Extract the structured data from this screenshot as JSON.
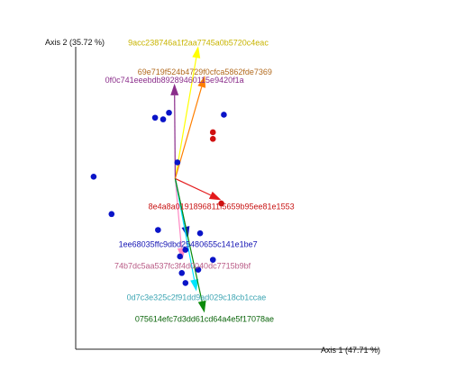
{
  "chart_data": {
    "type": "biplot",
    "xlabel": "Axis 1 (47.71 %)",
    "ylabel": "Axis 2 (35.72 %)",
    "xlim": [
      0,
      1
    ],
    "ylim": [
      0,
      1
    ],
    "grid": false,
    "points": [
      {
        "x": 0.049,
        "y": 0.521,
        "color": "#0a14c8"
      },
      {
        "x": 0.255,
        "y": 0.714,
        "color": "#0a14c8"
      },
      {
        "x": 0.239,
        "y": 0.694,
        "color": "#0a14c8"
      },
      {
        "x": 0.217,
        "y": 0.699,
        "color": "#0a14c8"
      },
      {
        "x": 0.278,
        "y": 0.564,
        "color": "#0a14c8"
      },
      {
        "x": 0.405,
        "y": 0.708,
        "color": "#0a14c8"
      },
      {
        "x": 0.285,
        "y": 0.28,
        "color": "#0a14c8"
      },
      {
        "x": 0.225,
        "y": 0.36,
        "color": "#0a14c8"
      },
      {
        "x": 0.098,
        "y": 0.408,
        "color": "#0a14c8"
      },
      {
        "x": 0.3,
        "y": 0.3,
        "color": "#0a14c8"
      },
      {
        "x": 0.34,
        "y": 0.35,
        "color": "#0a14c8"
      },
      {
        "x": 0.375,
        "y": 0.27,
        "color": "#0a14c8"
      },
      {
        "x": 0.335,
        "y": 0.24,
        "color": "#0a14c8"
      },
      {
        "x": 0.29,
        "y": 0.23,
        "color": "#0a14c8"
      },
      {
        "x": 0.3,
        "y": 0.2,
        "color": "#0a14c8"
      },
      {
        "x": 0.375,
        "y": 0.655,
        "color": "#d01010"
      },
      {
        "x": 0.375,
        "y": 0.635,
        "color": "#d01010"
      },
      {
        "x": 0.398,
        "y": 0.44,
        "color": "#d01010"
      }
    ],
    "origin": {
      "x": 0.272,
      "y": 0.515
    },
    "vectors": [
      {
        "label": "9acc238746a1f2aa7745a0b5720c4eac",
        "x": 0.335,
        "y": 0.915,
        "color": "#ffff00",
        "label_color": "#c8b400"
      },
      {
        "label": "0f0c741eeebdb89289460115e9420f1a",
        "x": 0.27,
        "y": 0.802,
        "color": "#8b2e8b",
        "label_color": "#8b2e8b"
      },
      {
        "label": "69e719f524b4729f0cfca5862fde7369",
        "x": 0.353,
        "y": 0.826,
        "color": "#ff7f00",
        "label_color": "#b26a1e"
      },
      {
        "label": "8e4a8a0191896811f5659b95ee81e1553",
        "x": 0.398,
        "y": 0.45,
        "color": "#e41a1c",
        "label_color": "#c81414"
      },
      {
        "label": "1ee68035ffc9dbd25480655c141e1be7",
        "x": 0.307,
        "y": 0.335,
        "color": "#1414b4",
        "label_color": "#1414b4"
      },
      {
        "label": "74b7dc5aa537fc3f4d0040dc7715b9bf",
        "x": 0.292,
        "y": 0.27,
        "color": "#ff8ac4",
        "label_color": "#b95b86"
      },
      {
        "label": "0d7c3e325c2f91dd9ad029c18cb1ccae",
        "x": 0.33,
        "y": 0.175,
        "color": "#00e5ff",
        "label_color": "#3fa6b4"
      },
      {
        "label": "075614efc7d3dd61cd64a4e5f17078ae",
        "x": 0.352,
        "y": 0.11,
        "color": "#0a8a0a",
        "label_color": "#0a640a"
      }
    ]
  }
}
